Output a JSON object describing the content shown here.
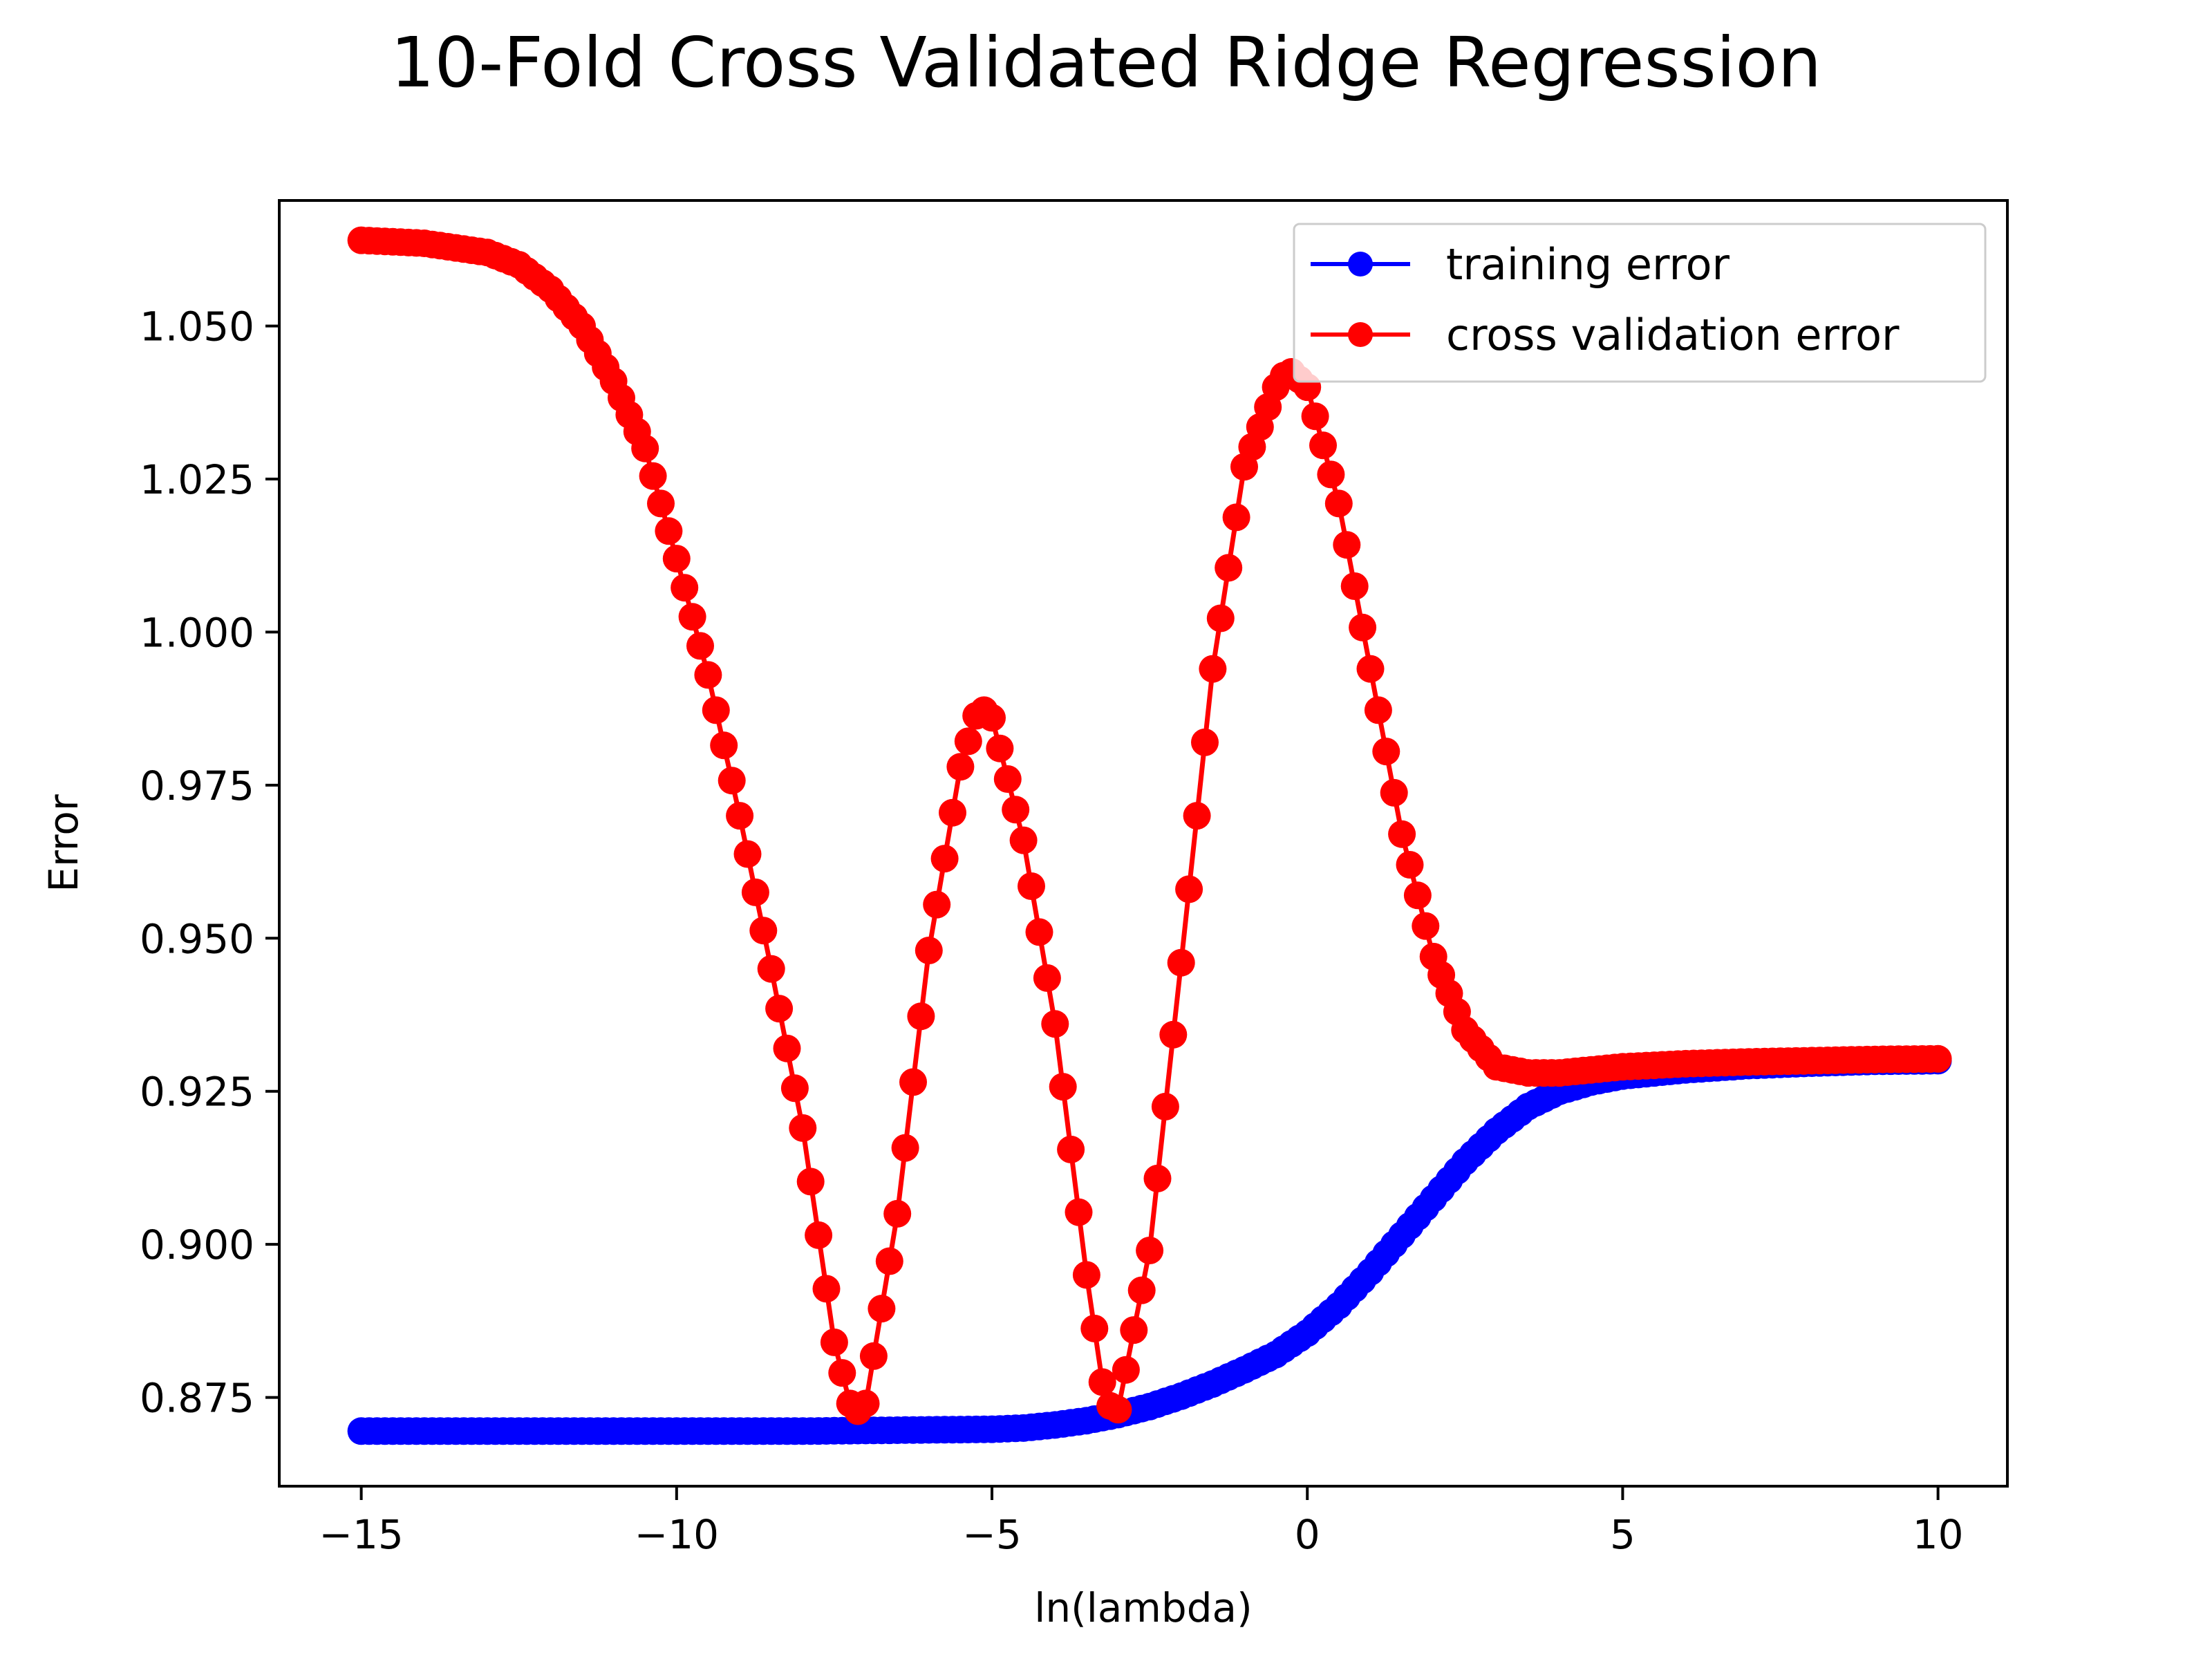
{
  "chart_data": {
    "type": "line",
    "title": "10-Fold Cross Validated Ridge Regression",
    "xlabel": "ln(lambda)",
    "ylabel": "Error",
    "xlim": [
      -16.3,
      11.1
    ],
    "ylim": [
      0.8605,
      1.0705
    ],
    "x_ticks": [
      -15,
      -10,
      -5,
      0,
      5,
      10
    ],
    "x_tick_labels": [
      "−15",
      "−10",
      "−5",
      "0",
      "5",
      "10"
    ],
    "y_ticks": [
      0.875,
      0.9,
      0.925,
      0.95,
      0.975,
      1.0,
      1.025,
      1.05
    ],
    "y_tick_labels": [
      "0.875",
      "0.900",
      "0.925",
      "0.950",
      "0.975",
      "1.000",
      "1.025",
      "1.050"
    ],
    "grid": false,
    "legend_position": "top-right",
    "x_range": [
      -15,
      10
    ],
    "series": [
      {
        "name": "training error",
        "color": "#0000ff",
        "marker": "circle",
        "x": [
          -15,
          -13,
          -11,
          -9,
          -8,
          -7,
          -6,
          -5,
          -4.5,
          -4,
          -3.5,
          -3,
          -2.5,
          -2,
          -1.5,
          -1,
          -0.5,
          0,
          0.5,
          1,
          1.5,
          2,
          2.5,
          3,
          3.5,
          4,
          4.5,
          5,
          6,
          7,
          8,
          9,
          10
        ],
        "values": [
          0.8695,
          0.8695,
          0.8695,
          0.8695,
          0.8695,
          0.8696,
          0.8697,
          0.8698,
          0.87,
          0.8705,
          0.8712,
          0.8722,
          0.8735,
          0.8752,
          0.8772,
          0.8795,
          0.882,
          0.8855,
          0.89,
          0.8955,
          0.9015,
          0.9075,
          0.9135,
          0.9185,
          0.9225,
          0.925,
          0.9265,
          0.9275,
          0.9285,
          0.9292,
          0.9296,
          0.9299,
          0.93
        ]
      },
      {
        "name": "cross validation error",
        "color": "#ff0000",
        "marker": "circle",
        "x": [
          -15,
          -14,
          -13,
          -12.5,
          -12,
          -11.5,
          -11,
          -10.5,
          -10,
          -9.5,
          -9,
          -8.5,
          -8,
          -7.5,
          -7.2,
          -7,
          -6.5,
          -6,
          -5.5,
          -5.2,
          -5,
          -4.5,
          -4,
          -3.5,
          -3.2,
          -3,
          -2.5,
          -2,
          -1.5,
          -1,
          -0.5,
          -0.3,
          0,
          0.5,
          1,
          1.5,
          2,
          2.5,
          3,
          3.5,
          4,
          5,
          6,
          7,
          8,
          9,
          10
        ],
        "values": [
          1.064,
          1.0635,
          1.062,
          1.06,
          1.056,
          1.05,
          1.041,
          1.03,
          1.012,
          0.993,
          0.97,
          0.945,
          0.919,
          0.884,
          0.872,
          0.874,
          0.905,
          0.948,
          0.978,
          0.988,
          0.986,
          0.966,
          0.936,
          0.895,
          0.874,
          0.873,
          0.899,
          0.946,
          0.994,
          1.027,
          1.04,
          1.043,
          1.04,
          1.021,
          0.994,
          0.967,
          0.947,
          0.935,
          0.929,
          0.928,
          0.928,
          0.929,
          0.9295,
          0.9298,
          0.93,
          0.9302,
          0.9303
        ]
      }
    ]
  }
}
